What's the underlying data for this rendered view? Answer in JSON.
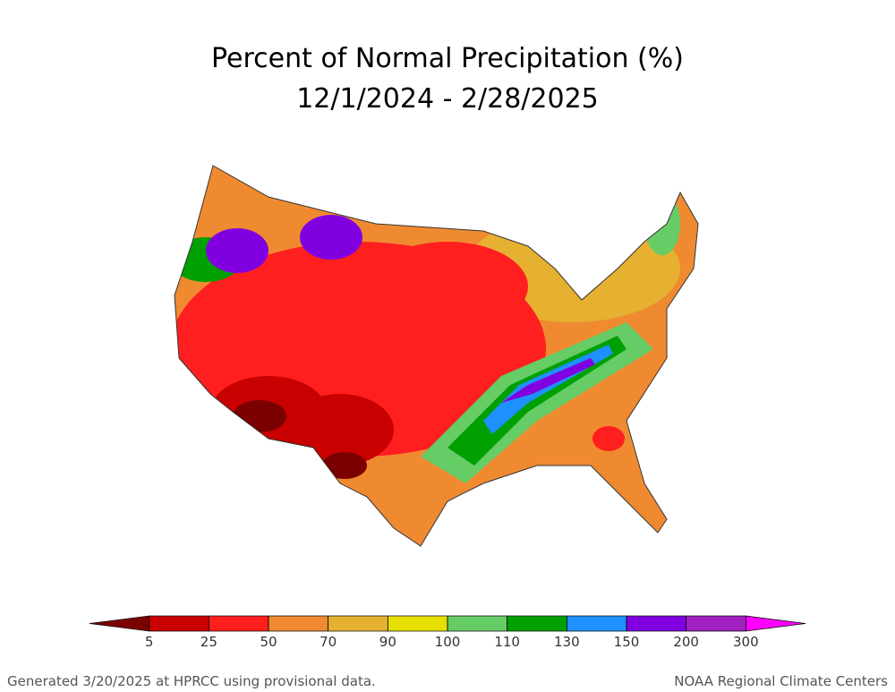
{
  "title": [
    "Percent of Normal Precipitation (%)",
    "12/1/2024 - 2/28/2025"
  ],
  "colorbar": {
    "ticks": [
      5,
      25,
      50,
      70,
      90,
      100,
      110,
      130,
      150,
      200,
      300
    ],
    "colors": [
      "#7b0000",
      "#c80000",
      "#ff1f1f",
      "#f08a30",
      "#e6b030",
      "#e6e000",
      "#66cc66",
      "#00a000",
      "#1e90ff",
      "#8000e0",
      "#a020c0",
      "#ff00ff"
    ]
  },
  "footer": {
    "left": "Generated 3/20/2025 at HPRCC using provisional data.",
    "right": "NOAA Regional Climate Centers"
  }
}
